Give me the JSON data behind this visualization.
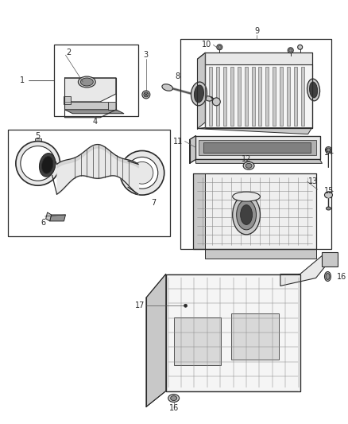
{
  "bg_color": "#ffffff",
  "lc": "#2a2a2a",
  "lc_light": "#888888",
  "lc_med": "#555555",
  "gray_fill": "#c8c8c8",
  "light_fill": "#e8e8e8",
  "dark_fill": "#404040",
  "mid_fill": "#909090",
  "fig_w": 4.38,
  "fig_h": 5.33,
  "dpi": 100,
  "fs": 7.0,
  "fs_sm": 6.5
}
